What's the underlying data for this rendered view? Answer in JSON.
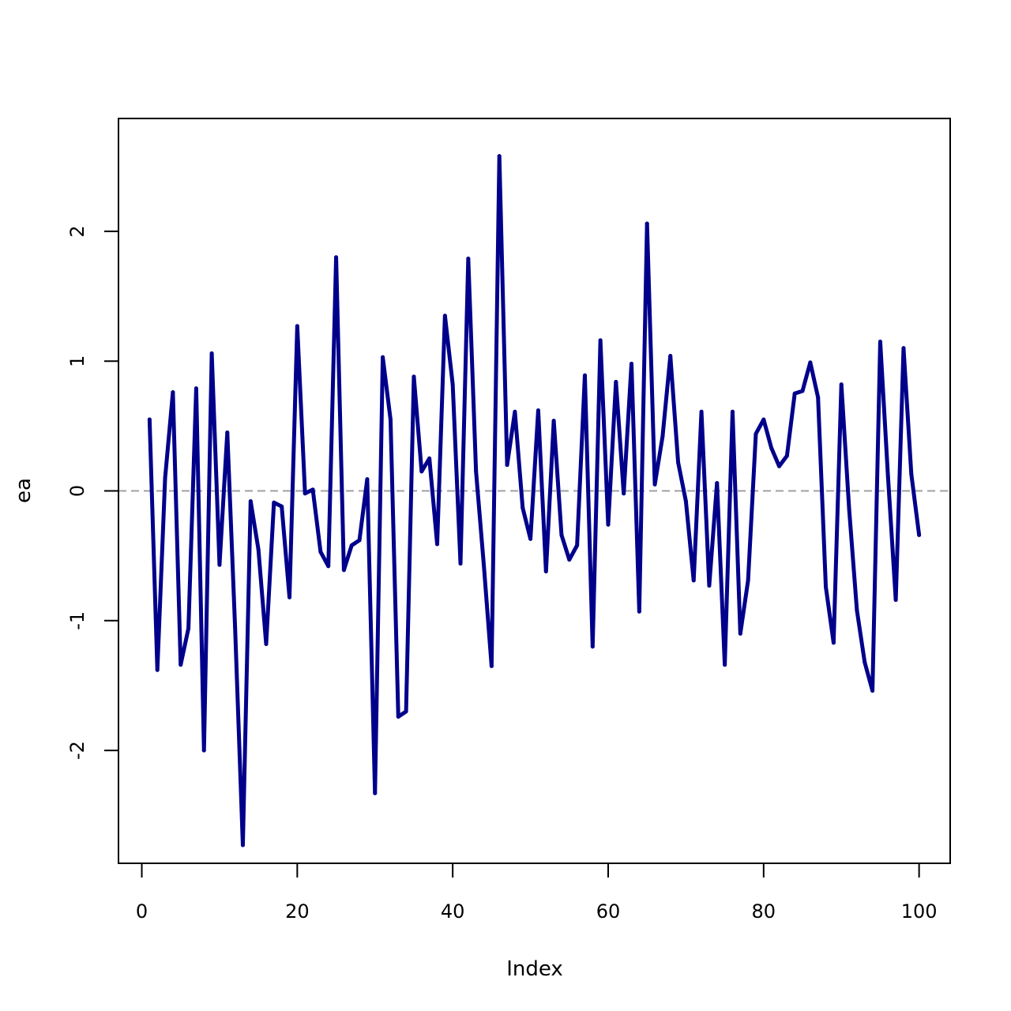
{
  "chart_data": {
    "type": "line",
    "title": "",
    "xlabel": "Index",
    "ylabel": "ea",
    "xlim": [
      -3,
      104
    ],
    "ylim": [
      -2.87,
      2.87
    ],
    "xticks": [
      0,
      20,
      40,
      60,
      80,
      100
    ],
    "xtick_labels": [
      "0",
      "20",
      "40",
      "60",
      "80",
      "100"
    ],
    "yticks": [
      -2,
      -1,
      0,
      1,
      2
    ],
    "ytick_labels": [
      "-2",
      "-1",
      "0",
      "1",
      "2"
    ],
    "grid": false,
    "reference_line": {
      "y": 0,
      "style": "dashed",
      "color": "#a0a0a0"
    },
    "series": [
      {
        "color": "#00008b",
        "x": [
          1,
          2,
          3,
          4,
          5,
          6,
          7,
          8,
          9,
          10,
          11,
          12,
          13,
          14,
          15,
          16,
          17,
          18,
          19,
          20,
          21,
          22,
          23,
          24,
          25,
          26,
          27,
          28,
          29,
          30,
          31,
          32,
          33,
          34,
          35,
          36,
          37,
          38,
          39,
          40,
          41,
          42,
          43,
          44,
          45,
          46,
          47,
          48,
          49,
          50,
          51,
          52,
          53,
          54,
          55,
          56,
          57,
          58,
          59,
          60,
          61,
          62,
          63,
          64,
          65,
          66,
          67,
          68,
          69,
          70,
          71,
          72,
          73,
          74,
          75,
          76,
          77,
          78,
          79,
          80,
          81,
          82,
          83,
          84,
          85,
          86,
          87,
          88,
          89,
          90,
          91,
          92,
          93,
          94,
          95,
          96,
          97,
          98,
          99,
          100
        ],
        "y": [
          0.55,
          -1.38,
          0.1,
          0.76,
          -1.34,
          -1.06,
          0.79,
          -2.0,
          1.06,
          -0.57,
          0.45,
          -1.05,
          -2.73,
          -0.08,
          -0.45,
          -1.18,
          -0.09,
          -0.12,
          -0.82,
          1.27,
          -0.02,
          0.01,
          -0.47,
          -0.58,
          1.8,
          -0.61,
          -0.42,
          -0.38,
          0.09,
          -2.33,
          1.03,
          0.55,
          -1.74,
          -1.7,
          0.88,
          0.15,
          0.25,
          -0.41,
          1.35,
          0.82,
          -0.56,
          1.79,
          0.15,
          -0.57,
          -1.35,
          2.58,
          0.2,
          0.61,
          -0.13,
          -0.37,
          0.62,
          -0.62,
          0.54,
          -0.34,
          -0.53,
          -0.42,
          0.89,
          -1.2,
          1.16,
          -0.26,
          0.84,
          -0.02,
          0.98,
          -0.93,
          2.06,
          0.05,
          0.42,
          1.04,
          0.22,
          -0.08,
          -0.69,
          0.61,
          -0.73,
          0.06,
          -1.34,
          0.61,
          -1.1,
          -0.69,
          0.44,
          0.55,
          0.33,
          0.19,
          0.27,
          0.75,
          0.77,
          0.99,
          0.72,
          -0.74,
          -1.17,
          0.82,
          -0.14,
          -0.92,
          -1.32,
          -1.54,
          1.15,
          0.11,
          -0.84,
          1.1,
          0.13,
          -0.34
        ]
      }
    ]
  }
}
